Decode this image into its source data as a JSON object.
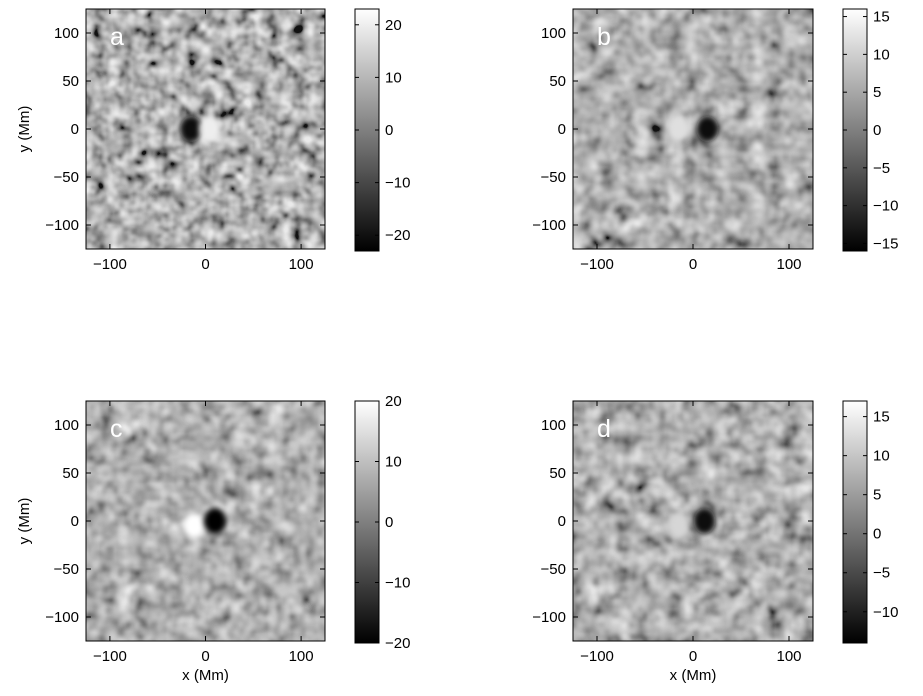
{
  "chart_data": [
    {
      "type": "heatmap",
      "panel_label": "a",
      "xlim": [
        -125,
        125
      ],
      "ylim": [
        -125,
        125
      ],
      "xticks": [
        -100,
        0,
        100
      ],
      "yticks": [
        100,
        50,
        0,
        -50,
        -100
      ],
      "xlabel": "",
      "ylabel": "y (Mm)",
      "colorbar": {
        "min": -23,
        "max": 23,
        "ticks": [
          20,
          10,
          0,
          -10,
          -20
        ]
      },
      "features": [
        {
          "kind": "dark",
          "x": -15,
          "y": 0,
          "value": -20
        },
        {
          "kind": "bright",
          "x": 5,
          "y": 0,
          "value": 20
        }
      ]
    },
    {
      "type": "heatmap",
      "panel_label": "b",
      "xlim": [
        -125,
        125
      ],
      "ylim": [
        -125,
        125
      ],
      "xticks": [
        -100,
        0,
        100
      ],
      "yticks": [
        100,
        50,
        0,
        -50,
        -100
      ],
      "xlabel": "",
      "ylabel": "",
      "colorbar": {
        "min": -16,
        "max": 16,
        "ticks": [
          15,
          10,
          5,
          0,
          -5,
          -10,
          -15
        ]
      },
      "features": [
        {
          "kind": "bright",
          "x": -15,
          "y": 0,
          "value": 12
        },
        {
          "kind": "dark",
          "x": 15,
          "y": 0,
          "value": -14
        }
      ]
    },
    {
      "type": "heatmap",
      "panel_label": "c",
      "xlim": [
        -125,
        125
      ],
      "ylim": [
        -125,
        125
      ],
      "xticks": [
        -100,
        0,
        100
      ],
      "yticks": [
        100,
        50,
        0,
        -50,
        -100
      ],
      "xlabel": "x (Mm)",
      "ylabel": "y (Mm)",
      "colorbar": {
        "min": -20,
        "max": 20,
        "ticks": [
          20,
          10,
          0,
          -10,
          -20
        ]
      },
      "features": [
        {
          "kind": "bright",
          "x": -12,
          "y": -5,
          "value": 20
        },
        {
          "kind": "dark",
          "x": 10,
          "y": 0,
          "value": -20
        }
      ]
    },
    {
      "type": "heatmap",
      "panel_label": "d",
      "xlim": [
        -125,
        125
      ],
      "ylim": [
        -125,
        125
      ],
      "xticks": [
        -100,
        0,
        100
      ],
      "yticks": [
        100,
        50,
        0,
        -50,
        -100
      ],
      "xlabel": "x (Mm)",
      "ylabel": "",
      "colorbar": {
        "min": -14,
        "max": 17,
        "ticks": [
          15,
          10,
          5,
          0,
          -5,
          -10
        ]
      },
      "features": [
        {
          "kind": "bright",
          "x": -15,
          "y": -5,
          "value": 12
        },
        {
          "kind": "dark",
          "x": 12,
          "y": 0,
          "value": -13
        }
      ]
    }
  ]
}
